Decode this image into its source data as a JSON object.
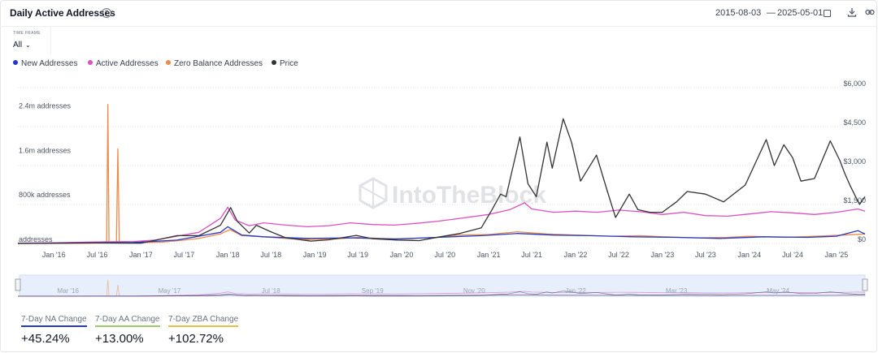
{
  "header": {
    "title": "Daily Active Addresses",
    "help_icon": "?",
    "date_from": "2015-08-03",
    "date_sep": "—",
    "date_to": "2025-05-01",
    "icons": [
      "calendar-icon",
      "download-icon",
      "link-icon"
    ]
  },
  "timeframe": {
    "label": "TIME FRAME",
    "value": "All"
  },
  "legend": [
    {
      "name": "New Addresses",
      "color": "#2439c9"
    },
    {
      "name": "Active Addresses",
      "color": "#df4fbf"
    },
    {
      "name": "Zero Balance Addresses",
      "color": "#ee8a4a"
    },
    {
      "name": "Price",
      "color": "#333333"
    }
  ],
  "watermark": "IntoTheBlock",
  "chart_data": {
    "type": "line",
    "x_range": [
      "2015-08-03",
      "2025-05-01"
    ],
    "x_ticks": [
      "Jan '16",
      "Jul '16",
      "Jan '17",
      "Jul '17",
      "Jan '18",
      "Jul '18",
      "Jan '19",
      "Jul '19",
      "Jan '20",
      "Jul '20",
      "Jan '21",
      "Jul '21",
      "Jan '22",
      "Jul '22",
      "Jan '23",
      "Jul '23",
      "Jan '24",
      "Jul '24",
      "Jan '25"
    ],
    "y_left_ticks": [
      "addresses",
      "800k addresses",
      "1.6m addresses",
      "2.4m addresses"
    ],
    "y_left_range": [
      0,
      2800000
    ],
    "y_right_ticks": [
      "$0",
      "$1,500",
      "$3,000",
      "$4,500",
      "$6,000"
    ],
    "y_right_range": [
      0,
      6000
    ],
    "series": [
      {
        "name": "Zero Balance Addresses",
        "axis": "left",
        "color": "#ee8a4a",
        "points": [
          [
            "2015-08-03",
            0
          ],
          [
            "2016-01-01",
            2000
          ],
          [
            "2016-06-01",
            5000
          ],
          [
            "2016-07-15",
            8000
          ],
          [
            "2016-08-10",
            10000
          ],
          [
            "2016-08-15",
            2500000
          ],
          [
            "2016-08-20",
            10000
          ],
          [
            "2016-09-20",
            10000
          ],
          [
            "2016-09-26",
            1700000
          ],
          [
            "2016-10-02",
            10000
          ],
          [
            "2016-12-01",
            12000
          ],
          [
            "2017-04-01",
            25000
          ],
          [
            "2017-07-01",
            60000
          ],
          [
            "2017-09-01",
            90000
          ],
          [
            "2017-12-01",
            170000
          ],
          [
            "2018-01-10",
            250000
          ],
          [
            "2018-03-01",
            140000
          ],
          [
            "2018-06-01",
            120000
          ],
          [
            "2018-09-01",
            90000
          ],
          [
            "2018-12-01",
            70000
          ],
          [
            "2019-04-01",
            80000
          ],
          [
            "2019-07-01",
            110000
          ],
          [
            "2019-10-01",
            90000
          ],
          [
            "2020-01-01",
            80000
          ],
          [
            "2020-06-01",
            110000
          ],
          [
            "2020-09-01",
            150000
          ],
          [
            "2021-01-01",
            160000
          ],
          [
            "2021-05-01",
            210000
          ],
          [
            "2021-09-01",
            170000
          ],
          [
            "2022-01-01",
            150000
          ],
          [
            "2022-06-01",
            130000
          ],
          [
            "2022-10-01",
            140000
          ],
          [
            "2023-01-01",
            120000
          ],
          [
            "2023-06-01",
            100000
          ],
          [
            "2023-10-01",
            110000
          ],
          [
            "2024-01-01",
            130000
          ],
          [
            "2024-06-01",
            110000
          ],
          [
            "2024-10-01",
            130000
          ],
          [
            "2025-02-01",
            150000
          ],
          [
            "2025-05-01",
            170000
          ]
        ]
      },
      {
        "name": "Active Addresses",
        "axis": "left",
        "color": "#df4fbf",
        "points": [
          [
            "2015-08-03",
            5000
          ],
          [
            "2016-01-01",
            12000
          ],
          [
            "2016-06-01",
            25000
          ],
          [
            "2016-12-01",
            35000
          ],
          [
            "2017-03-01",
            60000
          ],
          [
            "2017-06-01",
            130000
          ],
          [
            "2017-09-01",
            200000
          ],
          [
            "2017-12-01",
            450000
          ],
          [
            "2018-01-01",
            650000
          ],
          [
            "2018-02-01",
            420000
          ],
          [
            "2018-04-01",
            320000
          ],
          [
            "2018-06-01",
            370000
          ],
          [
            "2018-09-01",
            330000
          ],
          [
            "2018-12-01",
            300000
          ],
          [
            "2019-03-01",
            320000
          ],
          [
            "2019-06-01",
            370000
          ],
          [
            "2019-09-01",
            340000
          ],
          [
            "2019-12-01",
            330000
          ],
          [
            "2020-03-01",
            360000
          ],
          [
            "2020-06-01",
            400000
          ],
          [
            "2020-09-01",
            450000
          ],
          [
            "2021-01-01",
            520000
          ],
          [
            "2021-04-01",
            610000
          ],
          [
            "2021-06-01",
            730000
          ],
          [
            "2021-07-01",
            620000
          ],
          [
            "2021-10-01",
            560000
          ],
          [
            "2022-01-01",
            580000
          ],
          [
            "2022-04-01",
            560000
          ],
          [
            "2022-07-01",
            600000
          ],
          [
            "2022-10-01",
            570000
          ],
          [
            "2023-01-01",
            520000
          ],
          [
            "2023-04-01",
            560000
          ],
          [
            "2023-07-01",
            500000
          ],
          [
            "2023-10-01",
            490000
          ],
          [
            "2024-01-01",
            530000
          ],
          [
            "2024-04-01",
            570000
          ],
          [
            "2024-07-01",
            550000
          ],
          [
            "2024-10-01",
            520000
          ],
          [
            "2025-01-01",
            560000
          ],
          [
            "2025-04-01",
            620000
          ],
          [
            "2025-05-01",
            580000
          ]
        ]
      },
      {
        "name": "New Addresses",
        "axis": "left",
        "color": "#2439c9",
        "points": [
          [
            "2015-08-03",
            2000
          ],
          [
            "2016-01-01",
            6000
          ],
          [
            "2016-06-01",
            12000
          ],
          [
            "2016-12-01",
            18000
          ],
          [
            "2017-06-01",
            60000
          ],
          [
            "2017-12-01",
            200000
          ],
          [
            "2018-01-01",
            300000
          ],
          [
            "2018-03-01",
            150000
          ],
          [
            "2018-06-01",
            120000
          ],
          [
            "2018-12-01",
            90000
          ],
          [
            "2019-06-01",
            100000
          ],
          [
            "2019-12-01",
            80000
          ],
          [
            "2020-06-01",
            110000
          ],
          [
            "2020-12-01",
            140000
          ],
          [
            "2021-05-01",
            180000
          ],
          [
            "2021-10-01",
            150000
          ],
          [
            "2022-03-01",
            140000
          ],
          [
            "2022-09-01",
            120000
          ],
          [
            "2023-03-01",
            110000
          ],
          [
            "2023-09-01",
            90000
          ],
          [
            "2024-03-01",
            120000
          ],
          [
            "2024-09-01",
            110000
          ],
          [
            "2025-01-01",
            130000
          ],
          [
            "2025-04-01",
            230000
          ],
          [
            "2025-05-01",
            170000
          ]
        ]
      },
      {
        "name": "Price",
        "axis": "right",
        "color": "#333333",
        "points": [
          [
            "2015-08-03",
            1
          ],
          [
            "2016-03-01",
            12
          ],
          [
            "2016-06-15",
            20
          ],
          [
            "2017-01-01",
            8
          ],
          [
            "2017-06-01",
            300
          ],
          [
            "2017-09-01",
            300
          ],
          [
            "2017-12-01",
            700
          ],
          [
            "2018-01-13",
            1380
          ],
          [
            "2018-02-10",
            850
          ],
          [
            "2018-04-01",
            400
          ],
          [
            "2018-05-01",
            700
          ],
          [
            "2018-07-01",
            450
          ],
          [
            "2018-09-01",
            220
          ],
          [
            "2018-12-15",
            90
          ],
          [
            "2019-03-01",
            140
          ],
          [
            "2019-06-25",
            310
          ],
          [
            "2019-09-01",
            180
          ],
          [
            "2019-12-15",
            130
          ],
          [
            "2020-03-15",
            110
          ],
          [
            "2020-06-01",
            240
          ],
          [
            "2020-09-01",
            380
          ],
          [
            "2020-12-01",
            600
          ],
          [
            "2021-01-15",
            1300
          ],
          [
            "2021-02-20",
            1900
          ],
          [
            "2021-03-15",
            1800
          ],
          [
            "2021-05-12",
            4100
          ],
          [
            "2021-06-15",
            2300
          ],
          [
            "2021-07-20",
            1800
          ],
          [
            "2021-09-03",
            3900
          ],
          [
            "2021-09-25",
            2900
          ],
          [
            "2021-11-10",
            4800
          ],
          [
            "2021-12-15",
            3900
          ],
          [
            "2022-01-22",
            2400
          ],
          [
            "2022-03-30",
            3400
          ],
          [
            "2022-05-15",
            2000
          ],
          [
            "2022-06-18",
            1000
          ],
          [
            "2022-08-15",
            1900
          ],
          [
            "2022-09-20",
            1300
          ],
          [
            "2022-11-10",
            1200
          ],
          [
            "2022-12-31",
            1200
          ],
          [
            "2023-03-01",
            1600
          ],
          [
            "2023-04-15",
            2000
          ],
          [
            "2023-07-01",
            1900
          ],
          [
            "2023-09-15",
            1600
          ],
          [
            "2023-12-15",
            2250
          ],
          [
            "2024-03-12",
            4000
          ],
          [
            "2024-04-15",
            3000
          ],
          [
            "2024-05-25",
            3800
          ],
          [
            "2024-07-01",
            3300
          ],
          [
            "2024-08-05",
            2400
          ],
          [
            "2024-10-01",
            2500
          ],
          [
            "2024-12-06",
            3950
          ],
          [
            "2025-01-15",
            3200
          ],
          [
            "2025-02-05",
            2700
          ],
          [
            "2025-03-01",
            2200
          ],
          [
            "2025-04-08",
            1500
          ],
          [
            "2025-05-01",
            1800
          ]
        ]
      }
    ],
    "grid": "dotted-horizontal"
  },
  "navigator": {
    "labels": [
      "Mar '16",
      "May '17",
      "Jul '18",
      "Sep '19",
      "Nov '20",
      "Jan '22",
      "Mar '23",
      "May '24"
    ]
  },
  "stats": [
    {
      "label": "7-Day NA Change",
      "value": "+45.24%",
      "color": "#2439c9"
    },
    {
      "label": "7-Day AA Change",
      "value": "+13.00%",
      "color": "#9bcc66"
    },
    {
      "label": "7-Day ZBA Change",
      "value": "+102.72%",
      "color": "#e5c04a"
    }
  ]
}
